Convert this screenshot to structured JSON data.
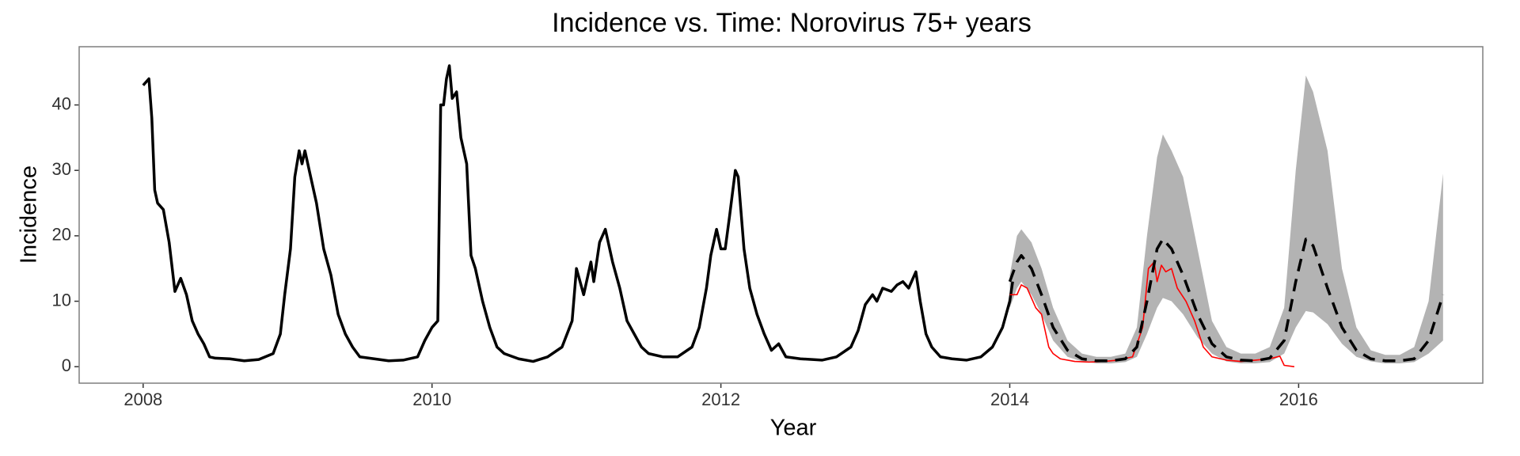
{
  "chart_data": {
    "type": "line",
    "title": "Incidence vs. Time: Norovirus 75+ years",
    "xlabel": "Year",
    "ylabel": "Incidence",
    "xlim": [
      2007.557,
      2017.275
    ],
    "ylim": [
      -2.52,
      48.9
    ],
    "xticks": [
      2008,
      2010,
      2012,
      2014,
      2016
    ],
    "yticks": [
      0,
      10,
      20,
      30,
      40
    ],
    "grid": false,
    "band": {
      "color": "#b3b3b3",
      "x": [
        2014.0,
        2014.05,
        2014.08,
        2014.15,
        2014.22,
        2014.3,
        2014.4,
        2014.5,
        2014.6,
        2014.7,
        2014.8,
        2014.88,
        2014.95,
        2015.02,
        2015.06,
        2015.12,
        2015.2,
        2015.3,
        2015.4,
        2015.5,
        2015.6,
        2015.7,
        2015.8,
        2015.9,
        2015.98,
        2016.05,
        2016.1,
        2016.2,
        2016.3,
        2016.4,
        2016.5,
        2016.6,
        2016.7,
        2016.8,
        2016.9,
        2017.0
      ],
      "lower": [
        9,
        12,
        13,
        11,
        8,
        4,
        1.5,
        0.8,
        0.5,
        0.5,
        0.7,
        1.5,
        5,
        9,
        10.5,
        10,
        8,
        4.5,
        2,
        0.8,
        0.5,
        0.5,
        0.7,
        2,
        6,
        8.5,
        8.3,
        6.5,
        3.5,
        1.5,
        0.8,
        0.5,
        0.5,
        0.7,
        2,
        4
      ],
      "upper": [
        14,
        20,
        21,
        19,
        15,
        9,
        4,
        2,
        1.5,
        1.5,
        2,
        6,
        20,
        32,
        35.5,
        33,
        29,
        18,
        7,
        3,
        2,
        2,
        3,
        9,
        30,
        44.5,
        42,
        33,
        15,
        6,
        2.5,
        1.8,
        1.8,
        3,
        10,
        29.5
      ]
    },
    "series": [
      {
        "color": "#000000",
        "linewidth": 3.5,
        "dashed": false,
        "x": [
          2008.0,
          2008.02,
          2008.04,
          2008.06,
          2008.08,
          2008.1,
          2008.14,
          2008.18,
          2008.22,
          2008.26,
          2008.3,
          2008.34,
          2008.38,
          2008.42,
          2008.46,
          2008.5,
          2008.6,
          2008.7,
          2008.8,
          2008.9,
          2008.95,
          2008.98,
          2009.02,
          2009.05,
          2009.08,
          2009.1,
          2009.12,
          2009.15,
          2009.2,
          2009.25,
          2009.3,
          2009.35,
          2009.4,
          2009.45,
          2009.5,
          2009.6,
          2009.7,
          2009.8,
          2009.9,
          2009.95,
          2010.0,
          2010.04,
          2010.06,
          2010.08,
          2010.1,
          2010.12,
          2010.14,
          2010.17,
          2010.2,
          2010.24,
          2010.27,
          2010.3,
          2010.35,
          2010.4,
          2010.45,
          2010.5,
          2010.6,
          2010.7,
          2010.8,
          2010.9,
          2010.97,
          2011.0,
          2011.05,
          2011.1,
          2011.12,
          2011.16,
          2011.2,
          2011.25,
          2011.3,
          2011.35,
          2011.4,
          2011.45,
          2011.5,
          2011.6,
          2011.7,
          2011.8,
          2011.85,
          2011.9,
          2011.93,
          2011.97,
          2012.0,
          2012.03,
          2012.06,
          2012.1,
          2012.12,
          2012.16,
          2012.2,
          2012.25,
          2012.3,
          2012.35,
          2012.4,
          2012.45,
          2012.55,
          2012.7,
          2012.8,
          2012.9,
          2012.95,
          2013.0,
          2013.05,
          2013.08,
          2013.12,
          2013.18,
          2013.22,
          2013.26,
          2013.3,
          2013.35,
          2013.38,
          2013.42,
          2013.46,
          2013.52,
          2013.6,
          2013.7,
          2013.8,
          2013.88,
          2013.95,
          2014.0,
          2014.02
        ],
        "values": [
          43,
          43.5,
          44,
          38,
          27,
          25,
          24,
          19,
          11.5,
          13.5,
          11,
          7,
          5,
          3.5,
          1.5,
          1.3,
          1.2,
          0.9,
          1.1,
          2,
          5,
          11,
          18,
          29,
          33,
          31,
          33,
          30,
          25,
          18,
          14,
          8,
          5,
          3,
          1.5,
          1.2,
          0.9,
          1,
          1.5,
          4,
          6,
          7,
          40,
          40,
          44,
          46,
          41,
          42,
          35,
          31,
          17,
          15,
          10,
          6,
          3,
          2,
          1.2,
          0.8,
          1.5,
          3,
          7,
          15,
          11,
          16,
          13,
          19,
          21,
          16,
          12,
          7,
          5,
          3,
          2,
          1.5,
          1.5,
          3,
          6,
          12,
          17,
          21,
          18,
          18,
          23,
          30,
          29,
          18,
          12,
          8,
          5,
          2.5,
          3.5,
          1.5,
          1.2,
          1,
          1.5,
          3,
          5.5,
          9.5,
          11,
          10,
          12,
          11.5,
          12.5,
          13,
          12,
          14.5,
          10,
          5,
          3,
          1.5,
          1.2,
          1,
          1.5,
          3,
          6,
          10,
          13
        ]
      },
      {
        "color": "#ff0000",
        "linewidth": 1.6,
        "dashed": false,
        "x": [
          2014.0,
          2014.05,
          2014.08,
          2014.12,
          2014.18,
          2014.22,
          2014.27,
          2014.3,
          2014.35,
          2014.45,
          2014.55,
          2014.65,
          2014.75,
          2014.85,
          2014.92,
          2014.96,
          2015.0,
          2015.02,
          2015.05,
          2015.08,
          2015.12,
          2015.16,
          2015.22,
          2015.28,
          2015.34,
          2015.4,
          2015.5,
          2015.6,
          2015.7,
          2015.8,
          2015.87,
          2015.9,
          2015.97
        ],
        "values": [
          11,
          11,
          12.5,
          12,
          9,
          8,
          3,
          2,
          1.2,
          0.8,
          0.7,
          0.8,
          1,
          1.5,
          6,
          15,
          16,
          13,
          15.5,
          14.5,
          15,
          12,
          10,
          7,
          3,
          1.5,
          1,
          0.8,
          1,
          1.2,
          1.6,
          0.2,
          0
        ]
      },
      {
        "color": "#000000",
        "linewidth": 3.5,
        "dashed": true,
        "x": [
          2014.0,
          2014.05,
          2014.08,
          2014.15,
          2014.22,
          2014.3,
          2014.4,
          2014.5,
          2014.6,
          2014.7,
          2014.8,
          2014.88,
          2014.95,
          2015.02,
          2015.06,
          2015.12,
          2015.2,
          2015.3,
          2015.4,
          2015.5,
          2015.6,
          2015.7,
          2015.8,
          2015.9,
          2015.98,
          2016.05,
          2016.1,
          2016.2,
          2016.3,
          2016.4,
          2016.5,
          2016.6,
          2016.7,
          2016.8,
          2016.9,
          2017.0
        ],
        "values": [
          13,
          16,
          17,
          15,
          11,
          6,
          2.5,
          1.2,
          0.9,
          0.9,
          1.2,
          3,
          10,
          18,
          19.5,
          18,
          14,
          8,
          3.5,
          1.5,
          1,
          0.9,
          1.3,
          4,
          13,
          19.5,
          18.5,
          12,
          6,
          2.5,
          1.2,
          0.9,
          0.9,
          1.2,
          4,
          11
        ]
      }
    ]
  }
}
